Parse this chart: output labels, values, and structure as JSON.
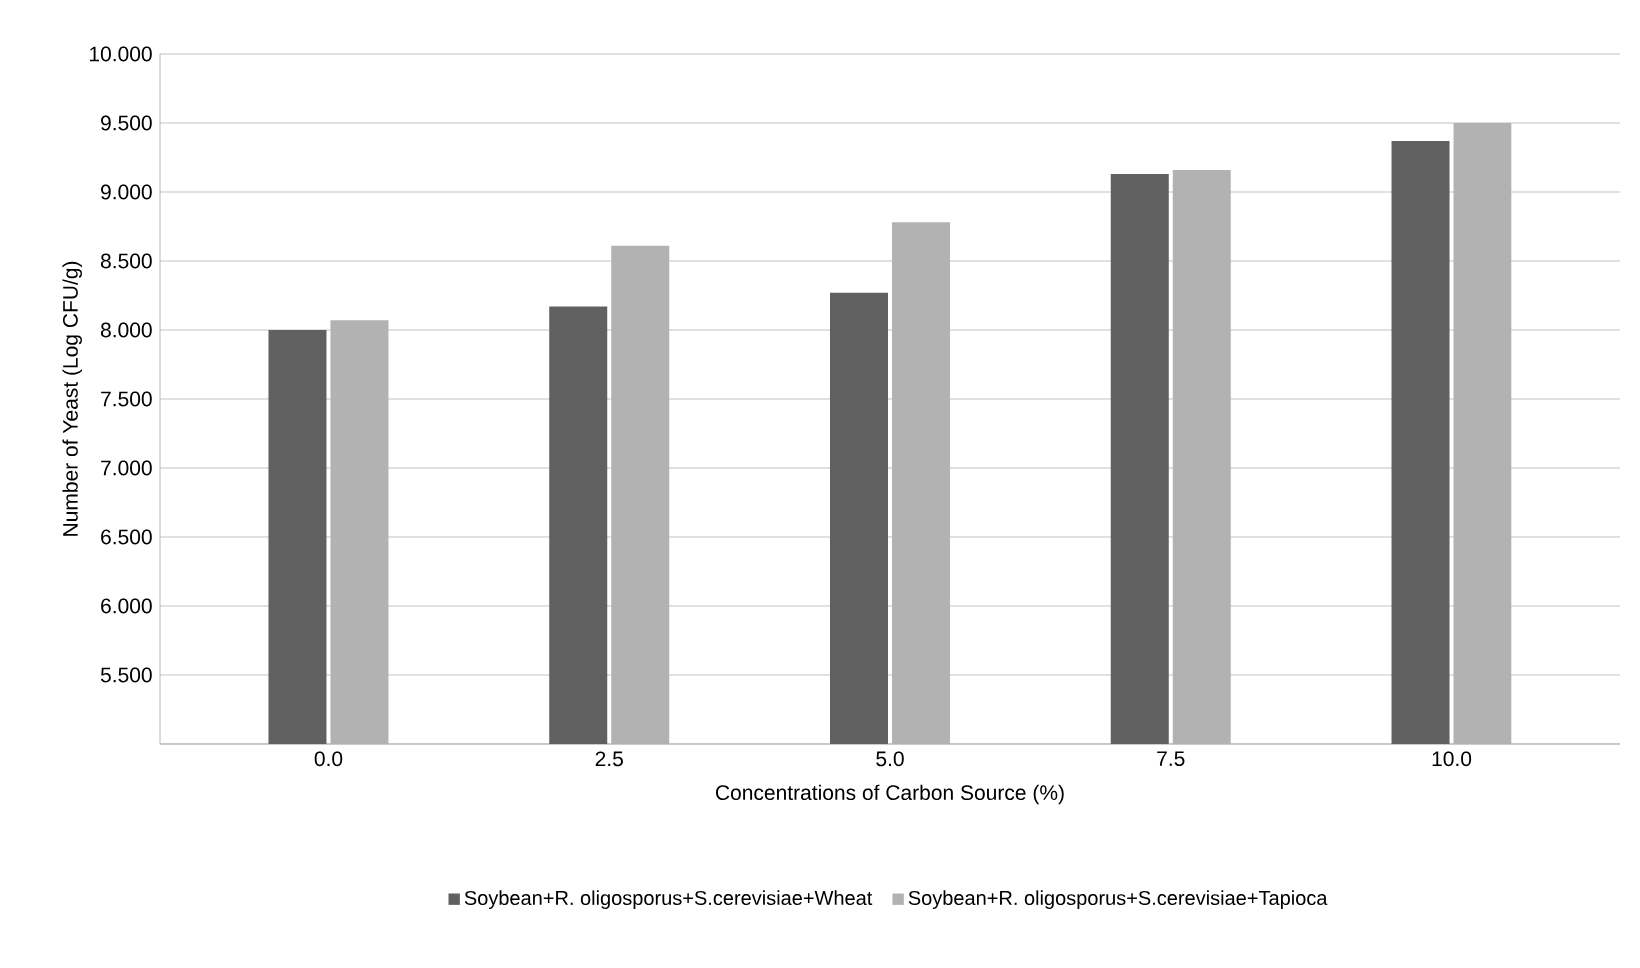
{
  "chart_data": {
    "type": "bar",
    "xlabel": "Concentrations of Carbon Source (%)",
    "ylabel": "Number of Yeast (Log CFU/g)",
    "categories": [
      "0.0",
      "2.5",
      "5.0",
      "7.5",
      "10.0"
    ],
    "series": [
      {
        "name": "Soybean+R. oligosporus+S.cerevisiae+Wheat",
        "color": "#606060",
        "values": [
          8.0,
          8.17,
          8.27,
          9.13,
          9.37
        ]
      },
      {
        "name": "Soybean+R. oligosporus+S.cerevisiae+Tapioca",
        "color": "#b2b2b2",
        "values": [
          8.07,
          8.61,
          8.78,
          9.16,
          9.5
        ]
      }
    ],
    "ylim": [
      5,
      10
    ],
    "yticks": [
      {
        "value": 5,
        "label": null
      },
      {
        "value": 5.5,
        "label": "5.500"
      },
      {
        "value": 6,
        "label": "6.000"
      },
      {
        "value": 6.5,
        "label": "6.500"
      },
      {
        "value": 7,
        "label": "7.000"
      },
      {
        "value": 7.5,
        "label": "7.500"
      },
      {
        "value": 8,
        "label": "8.000"
      },
      {
        "value": 8.5,
        "label": "8.500"
      },
      {
        "value": 9,
        "label": "9.000"
      },
      {
        "value": 9.5,
        "label": "9.500"
      },
      {
        "value": 10,
        "label": "10.000"
      }
    ],
    "grid": "y",
    "legend": "bottom"
  }
}
